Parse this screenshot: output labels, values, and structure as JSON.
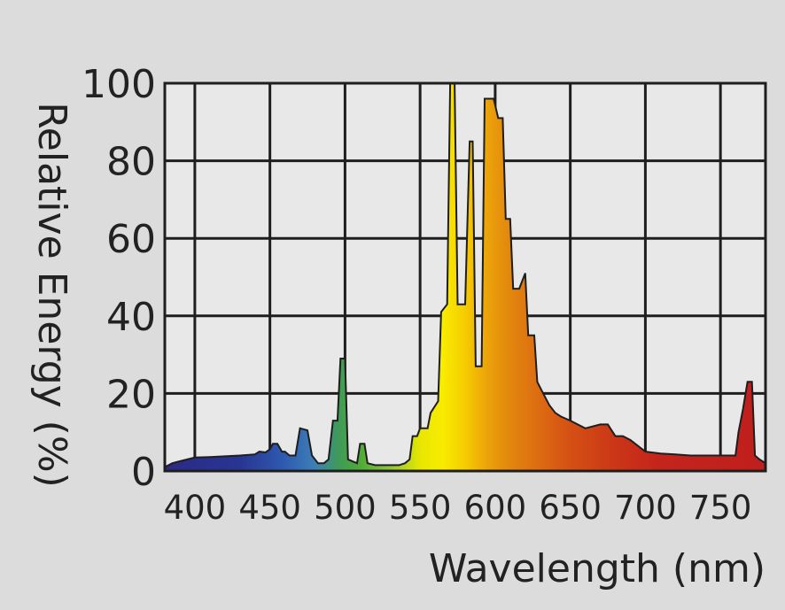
{
  "chart_data": {
    "type": "area",
    "title": "",
    "xlabel": "Wavelength (nm)",
    "ylabel": "Relative Energy (%)",
    "xlim": [
      380,
      780
    ],
    "ylim": [
      0,
      100
    ],
    "x_ticks": [
      400,
      450,
      500,
      550,
      600,
      650,
      700,
      750
    ],
    "x_tick_labels": [
      "400",
      "450",
      "500",
      "550",
      "600",
      "650",
      "700",
      "750"
    ],
    "y_ticks": [
      0,
      20,
      40,
      60,
      80,
      100
    ],
    "y_tick_labels": [
      "0",
      "20",
      "40",
      "60",
      "80",
      "100"
    ],
    "grid": true,
    "legend": "none",
    "colors": {
      "background": "#dcdcdc",
      "plot_area": "#e8e8e8",
      "grid": "#1e1e1e",
      "outline": "#1e1e1e"
    },
    "series": [
      {
        "values_type": "spectral power distribution",
        "points": [
          [
            380,
            1
          ],
          [
            385,
            2
          ],
          [
            390,
            2.5
          ],
          [
            395,
            3
          ],
          [
            400,
            3.5
          ],
          [
            410,
            3.6
          ],
          [
            420,
            3.8
          ],
          [
            430,
            4
          ],
          [
            440,
            4.3
          ],
          [
            443,
            5
          ],
          [
            447,
            4.8
          ],
          [
            450,
            5.6
          ],
          [
            452,
            7
          ],
          [
            455,
            7
          ],
          [
            458,
            5
          ],
          [
            460,
            5
          ],
          [
            463,
            4
          ],
          [
            467,
            4
          ],
          [
            470,
            11
          ],
          [
            475,
            10.5
          ],
          [
            478,
            4
          ],
          [
            482,
            2
          ],
          [
            486,
            2
          ],
          [
            489,
            3
          ],
          [
            492,
            13
          ],
          [
            495,
            13
          ],
          [
            497,
            29
          ],
          [
            500,
            29
          ],
          [
            502,
            3
          ],
          [
            508,
            2
          ],
          [
            510,
            7
          ],
          [
            513,
            7
          ],
          [
            515,
            2
          ],
          [
            520,
            1.5
          ],
          [
            525,
            1.5
          ],
          [
            530,
            1.5
          ],
          [
            536,
            1.5
          ],
          [
            540,
            2
          ],
          [
            543,
            3
          ],
          [
            545,
            9
          ],
          [
            548,
            9
          ],
          [
            550,
            11
          ],
          [
            555,
            11
          ],
          [
            557,
            15
          ],
          [
            562,
            18
          ],
          [
            564,
            41
          ],
          [
            568,
            43
          ],
          [
            570,
            100
          ],
          [
            573,
            100
          ],
          [
            575,
            43
          ],
          [
            580,
            43
          ],
          [
            583,
            85
          ],
          [
            585,
            85
          ],
          [
            587,
            27
          ],
          [
            591,
            27
          ],
          [
            593,
            96
          ],
          [
            599,
            96
          ],
          [
            602,
            91
          ],
          [
            605,
            91
          ],
          [
            607,
            65
          ],
          [
            610,
            65
          ],
          [
            612,
            47
          ],
          [
            616,
            47
          ],
          [
            620,
            51
          ],
          [
            622,
            35
          ],
          [
            626,
            35
          ],
          [
            628,
            23
          ],
          [
            632,
            20
          ],
          [
            636,
            17
          ],
          [
            640,
            15
          ],
          [
            644,
            14
          ],
          [
            650,
            13
          ],
          [
            660,
            11
          ],
          [
            670,
            12
          ],
          [
            675,
            12
          ],
          [
            680,
            9
          ],
          [
            685,
            9
          ],
          [
            690,
            8
          ],
          [
            700,
            5
          ],
          [
            710,
            4.5
          ],
          [
            720,
            4.3
          ],
          [
            730,
            4
          ],
          [
            740,
            4
          ],
          [
            750,
            4
          ],
          [
            760,
            4
          ],
          [
            762,
            10
          ],
          [
            765,
            16
          ],
          [
            768,
            23
          ],
          [
            771,
            23
          ],
          [
            773,
            4
          ],
          [
            776,
            3
          ],
          [
            780,
            2
          ]
        ]
      }
    ]
  }
}
